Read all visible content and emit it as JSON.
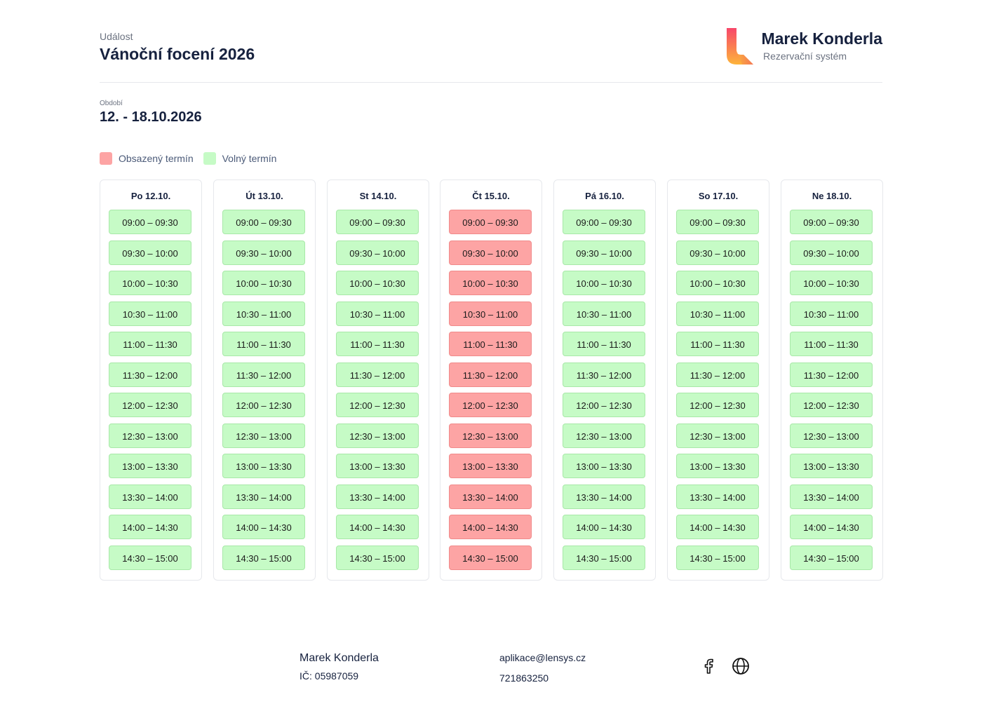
{
  "header": {
    "event_label": "Událost",
    "event_title": "Vánoční focení 2026",
    "brand_name": "Marek Konderla",
    "brand_subtitle": "Rezervační systém"
  },
  "period": {
    "label": "Období",
    "value": "12. - 18.10.2026"
  },
  "legend": {
    "busy_label": "Obsazený termín",
    "free_label": "Volný termín",
    "busy_color": "#fda4a4",
    "free_color": "#c6fbc6"
  },
  "days": [
    {
      "title": "Po 12.10.",
      "busy": false
    },
    {
      "title": "Út 13.10.",
      "busy": false
    },
    {
      "title": "St 14.10.",
      "busy": false
    },
    {
      "title": "Čt 15.10.",
      "busy": true
    },
    {
      "title": "Pá 16.10.",
      "busy": false
    },
    {
      "title": "So 17.10.",
      "busy": false
    },
    {
      "title": "Ne 18.10.",
      "busy": false
    }
  ],
  "slots": [
    "09:00 – 09:30",
    "09:30 – 10:00",
    "10:00 – 10:30",
    "10:30 – 11:00",
    "11:00 – 11:30",
    "11:30 – 12:00",
    "12:00 – 12:30",
    "12:30 – 13:00",
    "13:00 – 13:30",
    "13:30 – 14:00",
    "14:00 – 14:30",
    "14:30 – 15:00"
  ],
  "footer": {
    "name": "Marek Konderla",
    "ic": "IČ: 05987059",
    "email": "aplikace@lensys.cz",
    "phone": "721863250",
    "social_icons": [
      "facebook-icon",
      "globe-icon"
    ]
  }
}
